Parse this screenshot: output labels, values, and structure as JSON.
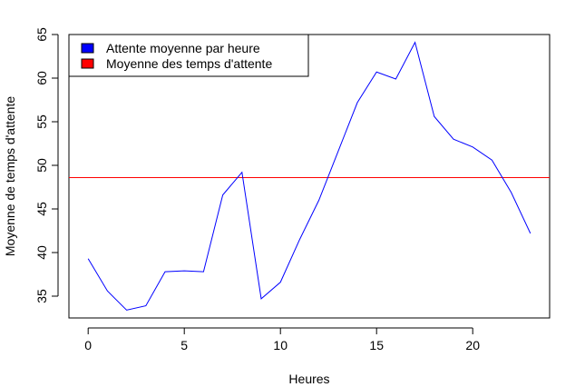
{
  "chart_data": {
    "type": "line",
    "title": "",
    "xlabel": "Heures",
    "ylabel": "Moyenne de temps d'attente",
    "xlim": [
      -1,
      24
    ],
    "ylim": [
      32.5,
      65
    ],
    "x_ticks": [
      0,
      5,
      10,
      15,
      20
    ],
    "y_ticks": [
      35,
      40,
      45,
      50,
      55,
      60,
      65
    ],
    "grid": false,
    "legend_position": "top-left",
    "series": [
      {
        "name": "Attente moyenne par heure",
        "color": "#0000ff",
        "x": [
          0,
          1,
          2,
          3,
          4,
          5,
          6,
          7,
          8,
          9,
          10,
          11,
          12,
          13,
          14,
          15,
          16,
          17,
          18,
          19,
          20,
          21,
          22,
          23
        ],
        "values": [
          39.3,
          35.6,
          33.4,
          33.9,
          37.8,
          37.9,
          37.8,
          46.6,
          49.2,
          34.7,
          36.6,
          41.5,
          46.0,
          51.6,
          57.2,
          60.7,
          59.9,
          64.1,
          55.6,
          53.0,
          52.1,
          50.6,
          46.9,
          42.2
        ]
      }
    ],
    "reference_lines": [
      {
        "name": "Moyenne des temps d'attente",
        "color": "#ff0000",
        "orientation": "horizontal",
        "value": 48.6
      }
    ],
    "legend": [
      {
        "label": "Attente moyenne par heure",
        "color": "#0000ff"
      },
      {
        "label": "Moyenne des temps d'attente",
        "color": "#ff0000"
      }
    ]
  }
}
